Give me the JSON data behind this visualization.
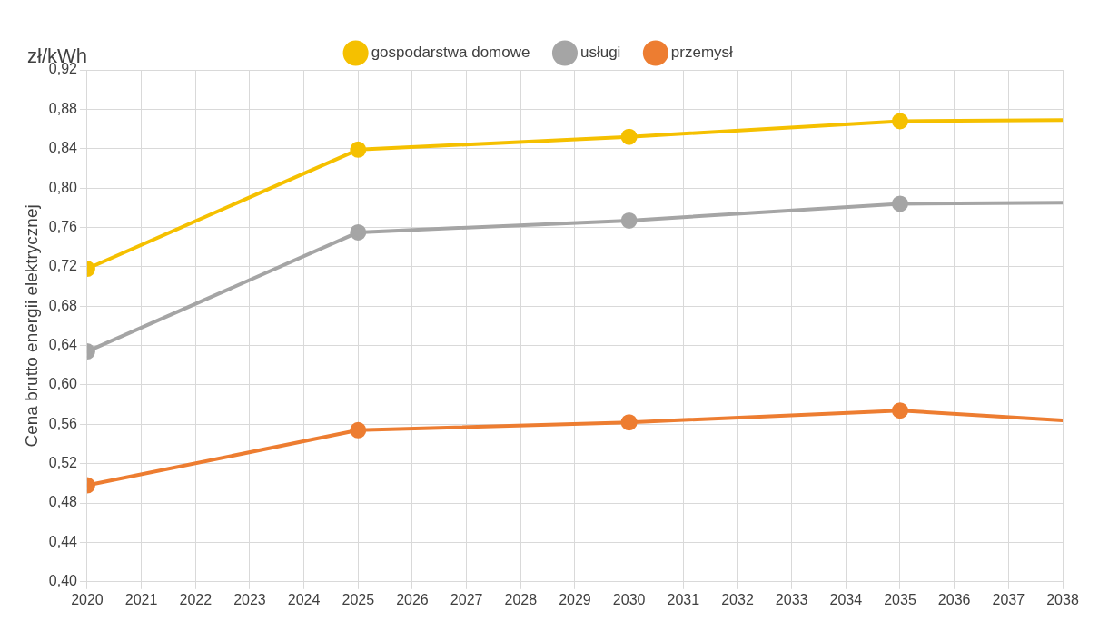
{
  "chart_data": {
    "type": "line",
    "ylabel": "Cena brutto energii elektrycznej",
    "annotations": [
      "zł/kWh"
    ],
    "xlim": [
      2020,
      2038
    ],
    "xticks": [
      2020,
      2021,
      2022,
      2023,
      2024,
      2025,
      2026,
      2027,
      2028,
      2029,
      2030,
      2031,
      2032,
      2033,
      2034,
      2035,
      2036,
      2037,
      2038
    ],
    "ylim": [
      0.4,
      0.92
    ],
    "yticks": [
      {
        "value": 0.4,
        "label": "0,40"
      },
      {
        "value": 0.44,
        "label": "0,44"
      },
      {
        "value": 0.48,
        "label": "0,48"
      },
      {
        "value": 0.52,
        "label": "0,52"
      },
      {
        "value": 0.56,
        "label": "0,56"
      },
      {
        "value": 0.6,
        "label": "0,60"
      },
      {
        "value": 0.64,
        "label": "0,64"
      },
      {
        "value": 0.68,
        "label": "0,68"
      },
      {
        "value": 0.72,
        "label": "0,72"
      },
      {
        "value": 0.76,
        "label": "0,76"
      },
      {
        "value": 0.8,
        "label": "0,80"
      },
      {
        "value": 0.84,
        "label": "0,84"
      },
      {
        "value": 0.88,
        "label": "0,88"
      },
      {
        "value": 0.92,
        "label": "0,92"
      }
    ],
    "x": [
      2020,
      2025,
      2030,
      2035,
      2038
    ],
    "series": [
      {
        "name": "gospodarstwa domowe",
        "color": "#f5c000",
        "values": [
          0.718,
          0.839,
          0.852,
          0.868,
          0.869
        ]
      },
      {
        "name": "usługi",
        "color": "#a5a5a5",
        "values": [
          0.634,
          0.755,
          0.767,
          0.784,
          0.785
        ]
      },
      {
        "name": "przemysł",
        "color": "#ed7d31",
        "values": [
          0.498,
          0.554,
          0.562,
          0.574,
          0.564
        ]
      }
    ],
    "grid": true,
    "legend": "top",
    "marker": "circle",
    "line_style": "solid"
  }
}
